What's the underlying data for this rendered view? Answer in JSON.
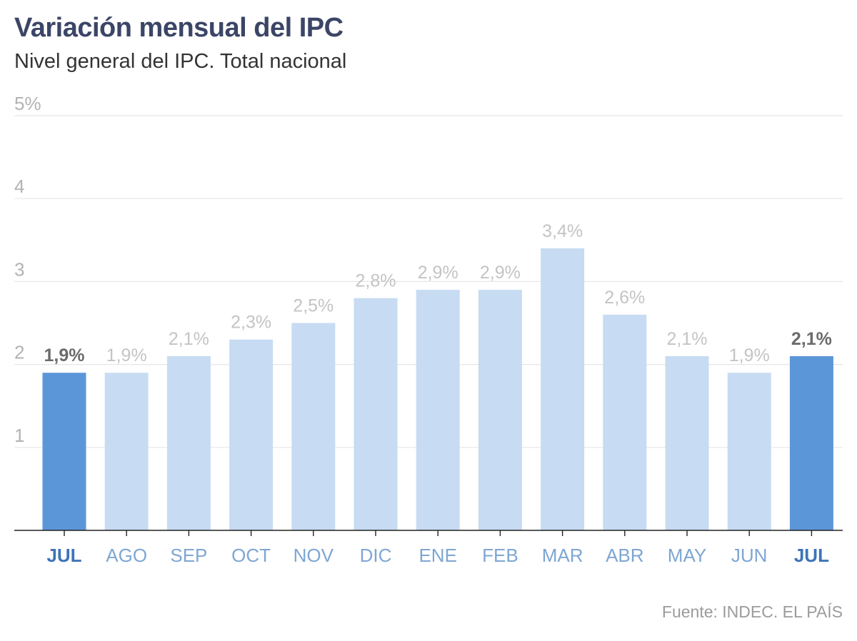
{
  "chart_data": {
    "type": "bar",
    "title": "Variación mensual del IPC",
    "subtitle": "Nivel general del IPC. Total nacional",
    "source": "Fuente: INDEC. EL PAÍS",
    "categories": [
      "JUL",
      "AGO",
      "SEP",
      "OCT",
      "NOV",
      "DIC",
      "ENE",
      "FEB",
      "MAR",
      "ABR",
      "MAY",
      "JUN",
      "JUL"
    ],
    "values": [
      1.9,
      1.9,
      2.1,
      2.3,
      2.5,
      2.8,
      2.9,
      2.9,
      3.4,
      2.6,
      2.1,
      1.9,
      2.1
    ],
    "data_labels": [
      "1,9%",
      "1,9%",
      "2,1%",
      "2,3%",
      "2,5%",
      "",
      "2,9%",
      "2,9%",
      "3,4%",
      "2,6%",
      "2,1%",
      "1,9%",
      "2,1%"
    ],
    "extra_labels": [
      {
        "index": 5,
        "text": "2,8%"
      }
    ],
    "highlighted": [
      0,
      12
    ],
    "ylim": [
      0,
      5
    ],
    "yticks": [
      1,
      2,
      3,
      4,
      5
    ],
    "ytick_labels": [
      "1",
      "2",
      "3",
      "4",
      "5%"
    ],
    "grid": true,
    "colors": {
      "highlight_bar": "#5b96d9",
      "bar": "#c7dbf2",
      "highlight_label": "#6b6b6b",
      "label": "#c4c4c4",
      "highlight_tick": "#3d74b8",
      "tick": "#7ea6d3"
    }
  }
}
